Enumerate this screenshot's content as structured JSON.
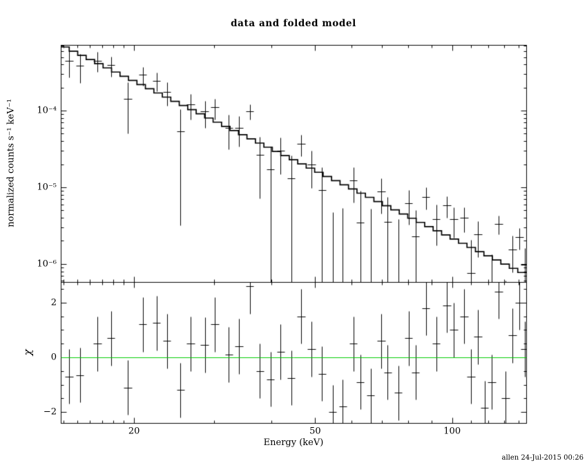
{
  "footer": "allen 24-Jul-2015 00:26",
  "colors": {
    "foreground": "#000000",
    "background": "#ffffff",
    "model_line": "#000000",
    "data": "#000000",
    "zero_line": "#00cc00"
  },
  "chart_data": [
    {
      "panel": "spectrum",
      "type": "scatter",
      "title": "data and folded model",
      "xlabel": "Energy (keV)",
      "ylabel": "normalized counts s⁻¹ keV⁻¹",
      "xscale": "log",
      "yscale": "log",
      "xlim": [
        13.8,
        145.5
      ],
      "ylim": [
        5.8e-07,
        0.00072
      ],
      "grid": false,
      "legend": false,
      "xticks": {
        "major": [
          20,
          50,
          100
        ],
        "labels": [
          "20",
          "50",
          "100"
        ],
        "minor": [
          14,
          15,
          16,
          17,
          18,
          19,
          30,
          40,
          60,
          70,
          80,
          90,
          110,
          120,
          130,
          140
        ]
      },
      "yticks": {
        "major": [
          0.0001,
          1e-05,
          1e-06
        ],
        "labels": [
          "10⁻⁴",
          "10⁻⁵",
          "10⁻⁶"
        ]
      },
      "model": {
        "description": "stepped folded model (power law)",
        "norm": 0.00072,
        "ref_energy_keV": 13.8,
        "photon_index": 2.93,
        "n_bins": 55,
        "e_min": 13.8,
        "e_max": 145.5
      },
      "points": {
        "e": [
          14.4,
          15.2,
          16.6,
          17.8,
          19.4,
          20.9,
          22.4,
          23.6,
          25.3,
          26.6,
          28.6,
          30.1,
          32.3,
          34.0,
          35.9,
          37.8,
          39.9,
          42.0,
          44.3,
          46.6,
          49.1,
          51.8,
          54.6,
          57.5,
          60.7,
          62.8,
          66.2,
          69.8,
          72.2,
          76.1,
          80.2,
          83.1,
          87.6,
          92.3,
          97.3,
          100.8,
          106.2,
          110.0,
          113.9,
          117.9,
          122.2,
          126.5,
          131.0,
          135.7,
          140.5,
          144.5
        ],
        "de": [
          0.3,
          0.3,
          0.35,
          0.35,
          0.4,
          0.4,
          0.45,
          0.45,
          0.5,
          0.55,
          0.6,
          0.6,
          0.65,
          0.7,
          0.7,
          0.75,
          0.8,
          0.85,
          0.9,
          0.95,
          1.0,
          1.05,
          1.1,
          1.15,
          1.2,
          1.25,
          1.3,
          1.4,
          1.45,
          1.5,
          1.6,
          1.65,
          1.75,
          1.85,
          1.95,
          2.0,
          2.1,
          2.2,
          2.3,
          2.35,
          2.45,
          2.55,
          2.6,
          2.7,
          2.8,
          2.9
        ],
        "rate": [
          0.00045,
          0.00039,
          0.000449,
          0.000392,
          0.000143,
          0.000292,
          0.000246,
          0.000176,
          5.36e-05,
          0.000121,
          9.74e-05,
          0.00011,
          5.95e-05,
          5.9e-05,
          9.9e-05,
          2.64e-05,
          1.73e-05,
          2.97e-05,
          1.31e-05,
          3.72e-05,
          2e-05,
          9.26e-06,
          -3.07e-06,
          -1.53e-06,
          1.23e-05,
          3.45e-06,
          4.77e-07,
          8.74e-06,
          3.51e-06,
          4.38e-07,
          6.25e-06,
          2.28e-06,
          7.51e-06,
          3.83e-06,
          5.85e-06,
          3.83e-06,
          4.03e-06,
          7.56e-07,
          2.43e-06,
          -6.68e-07,
          3.35e-07,
          3.35e-06,
          -2.45e-07,
          1.54e-06,
          2.24e-06,
          9.65e-07
        ],
        "rate_err": [
          0.000178,
          0.000159,
          0.000131,
          0.000113,
          9.3e-05,
          7.86e-05,
          6.7e-05,
          5.96e-05,
          5.04e-05,
          4.49e-05,
          3.78e-05,
          3.35e-05,
          2.83e-05,
          2.5e-05,
          2.19e-05,
          1.93e-05,
          1.7e-05,
          1.5e-05,
          1.31e-05,
          1.16e-05,
          1.02e-05,
          8.9e-06,
          7.84e-06,
          6.85e-06,
          6e-06,
          5.51e-06,
          4.82e-06,
          4.22e-06,
          3.88e-06,
          3.39e-06,
          2.97e-06,
          2.72e-06,
          2.37e-06,
          2.08e-06,
          1.82e-06,
          1.66e-06,
          1.45e-06,
          1.32e-06,
          1.21e-06,
          1.11e-06,
          1.01e-06,
          9.25e-07,
          8.44e-07,
          7.7e-07,
          7.03e-07,
          6.54e-07
        ]
      }
    },
    {
      "panel": "residuals",
      "type": "scatter",
      "ylabel": "χ",
      "yscale": "linear",
      "ylim": [
        -2.4,
        2.75
      ],
      "grid": false,
      "yticks": {
        "major": [
          -2,
          0,
          2
        ],
        "labels": [
          "−2",
          "0",
          "2"
        ],
        "minor_step": 0.5
      },
      "zero_line": {
        "value": 0,
        "color": "#00cc00"
      },
      "points": {
        "chi": [
          -0.7,
          -0.65,
          0.5,
          0.7,
          -1.1,
          1.2,
          1.25,
          0.6,
          -1.2,
          0.5,
          0.45,
          1.2,
          0.1,
          0.4,
          2.6,
          -0.5,
          -0.8,
          0.2,
          -0.75,
          1.5,
          0.3,
          -0.6,
          -2.0,
          -1.8,
          0.5,
          -0.9,
          -1.4,
          0.6,
          -0.55,
          -1.3,
          0.7,
          -0.55,
          1.8,
          0.5,
          1.9,
          1.0,
          1.5,
          -0.7,
          0.75,
          -1.85,
          -0.9,
          2.4,
          -1.5,
          0.8,
          2.0,
          0.3
        ],
        "chi_err": 1
      }
    }
  ]
}
